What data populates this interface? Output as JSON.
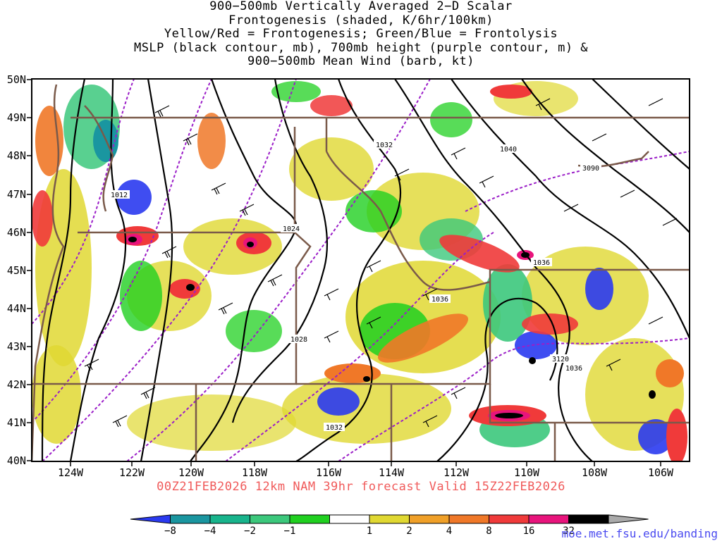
{
  "title_lines": [
    "900−500mb Vertically Averaged 2−D Scalar",
    "Frontogenesis (shaded, K/6hr/100km)",
    "Yellow/Red = Frontogenesis;  Green/Blue = Frontolysis",
    "MSLP (black contour, mb), 700mb height (purple contour, m) &",
    "900−500mb Mean Wind (barb, kt)"
  ],
  "lat_labels": [
    "50N",
    "49N",
    "48N",
    "47N",
    "46N",
    "45N",
    "44N",
    "43N",
    "42N",
    "41N",
    "40N"
  ],
  "lon_labels": [
    "124W",
    "122W",
    "120W",
    "118W",
    "116W",
    "114W",
    "112W",
    "110W",
    "108W",
    "106W"
  ],
  "valid_text": "00Z21FEB2026 12km NAM 39hr forecast Valid 15Z22FEB2026",
  "colorbar_labels": [
    "−8",
    "−4",
    "−2",
    "−1",
    "1",
    "2",
    "4",
    "8",
    "16",
    "32"
  ],
  "colorbar_colors": [
    "#2a3af0",
    "#1a96a0",
    "#18b48c",
    "#3cc87c",
    "#20d020",
    "#ffffff",
    "#e0d832",
    "#f0a028",
    "#f07828",
    "#f03a3a",
    "#e8147c",
    "#000000",
    "#aaaaaa"
  ],
  "contour_labels": {
    "mslp": [
      "1012",
      "1024",
      "1028",
      "1032",
      "1032",
      "1036",
      "1036",
      "1036",
      "1040"
    ],
    "height": [
      "3090",
      "3120"
    ]
  },
  "credit": "moe.met.fsu.edu/banding"
}
